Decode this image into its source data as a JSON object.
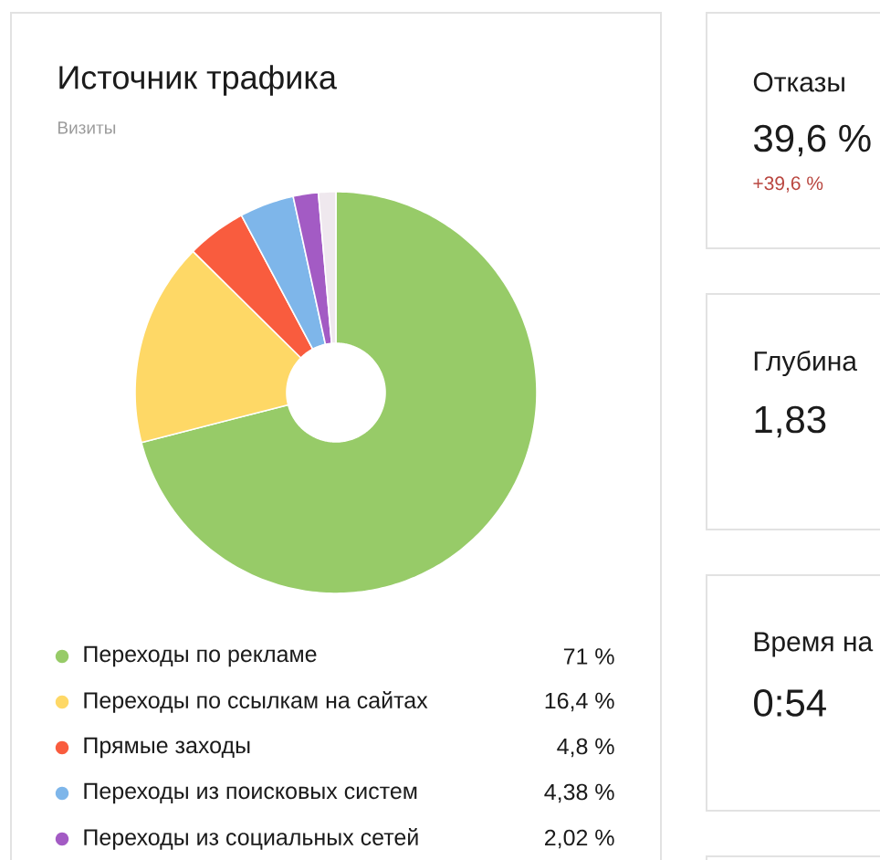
{
  "chart_data": [
    {
      "type": "donut",
      "title": "Источник трафика",
      "subtitle": "Визиты",
      "categories": [
        "Переходы по рекламе",
        "Переходы по ссылкам на сайтах",
        "Прямые заходы",
        "Переходы из поисковых систем",
        "Переходы из социальных сетей",
        null
      ],
      "values": [
        71,
        16.4,
        4.8,
        4.38,
        2.02,
        1.4
      ],
      "colors": [
        "#97cb68",
        "#fed866",
        "#f95c3e",
        "#7eb6ea",
        "#a35bc4",
        "#efe8ee"
      ],
      "value_labels": [
        "71 %",
        "16,4 %",
        "4,8 %",
        "4,38 %",
        "2,02 %",
        null
      ],
      "legend": "bottom"
    },
    {
      "type": "other",
      "title": "Отказы",
      "annotations": [
        "39,6 %",
        "+39,6 %"
      ]
    },
    {
      "type": "other",
      "title": "Глубина",
      "annotations": [
        "1,83"
      ]
    },
    {
      "type": "other",
      "title": "Время на",
      "annotations": [
        "0:54"
      ]
    }
  ]
}
